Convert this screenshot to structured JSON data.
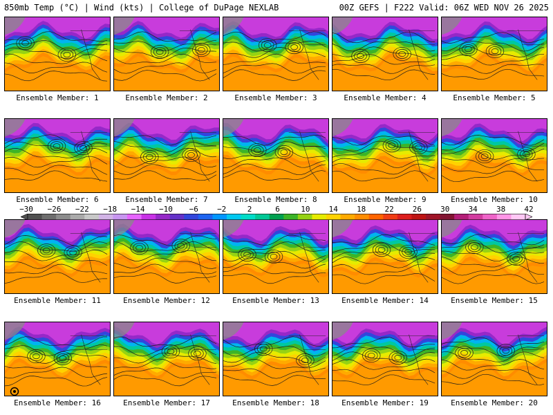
{
  "header": {
    "left": "850mb Temp (°C) | Wind (kts) | College of DuPage NEXLAB",
    "right": "00Z GEFS | F222 Valid: 06Z WED NOV 26 2025"
  },
  "members": [
    {
      "label": "Ensemble Member: 1"
    },
    {
      "label": "Ensemble Member: 2"
    },
    {
      "label": "Ensemble Member: 3"
    },
    {
      "label": "Ensemble Member: 4"
    },
    {
      "label": "Ensemble Member: 5"
    },
    {
      "label": "Ensemble Member: 6"
    },
    {
      "label": "Ensemble Member: 7"
    },
    {
      "label": "Ensemble Member: 8"
    },
    {
      "label": "Ensemble Member: 9"
    },
    {
      "label": "Ensemble Member: 10"
    },
    {
      "label": "Ensemble Member: 11"
    },
    {
      "label": "Ensemble Member: 12"
    },
    {
      "label": "Ensemble Member: 13"
    },
    {
      "label": "Ensemble Member: 14"
    },
    {
      "label": "Ensemble Member: 15"
    },
    {
      "label": "Ensemble Member: 16"
    },
    {
      "label": "Ensemble Member: 17"
    },
    {
      "label": "Ensemble Member: 18"
    },
    {
      "label": "Ensemble Member: 19"
    },
    {
      "label": "Ensemble Member: 20"
    }
  ],
  "colorbar": {
    "ticks": [
      "−30",
      "−26",
      "−22",
      "−18",
      "−14",
      "−10",
      "−6",
      "−2",
      "2",
      "6",
      "10",
      "14",
      "18",
      "22",
      "26",
      "30",
      "34",
      "38",
      "42"
    ],
    "colors": [
      "#505050",
      "#6e6e6e",
      "#8c8c8c",
      "#aaaaaa",
      "#c8c8c8",
      "#d2b4e6",
      "#c896f0",
      "#e664ff",
      "#c832e6",
      "#9628c8",
      "#6432c8",
      "#3246dc",
      "#1e64f0",
      "#0096ff",
      "#00c8f0",
      "#00dcc8",
      "#00c896",
      "#00a050",
      "#3cb428",
      "#96d214",
      "#e6eb00",
      "#ffd200",
      "#ffaa00",
      "#ff8c00",
      "#ff6400",
      "#f03c14",
      "#dc1e1e",
      "#be1414",
      "#a01428",
      "#821432",
      "#b41e78",
      "#d23ca0",
      "#ee64c8",
      "#ff96e6",
      "#ffc8f5"
    ]
  }
}
